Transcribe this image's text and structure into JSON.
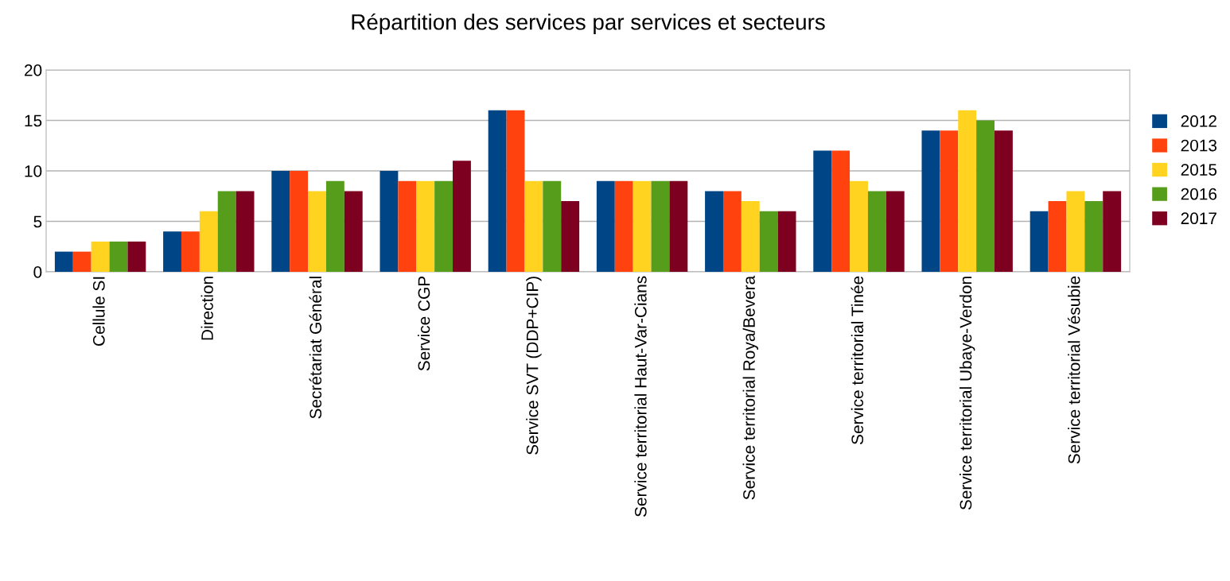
{
  "chart_data": {
    "type": "bar",
    "title": "Répartition des services par services et secteurs",
    "categories": [
      "Cellule SI",
      "Direction",
      "Secrétariat Général",
      "Service CGP",
      "Service SVT (DDP+CIP)",
      "Service territorial Haut-Var-Cians",
      "Service territorial Roya/Bevera",
      "Service territorial Tinée",
      "Service territorial Ubaye-Verdon",
      "Service territorial Vésubie"
    ],
    "series": [
      {
        "name": "2012",
        "color": "#004586",
        "values": [
          2,
          4,
          10,
          10,
          16,
          9,
          8,
          12,
          14,
          6
        ]
      },
      {
        "name": "2013",
        "color": "#ff420e",
        "values": [
          2,
          4,
          10,
          9,
          16,
          9,
          8,
          12,
          14,
          7
        ]
      },
      {
        "name": "2015",
        "color": "#ffd320",
        "values": [
          3,
          6,
          8,
          9,
          9,
          9,
          7,
          9,
          16,
          8
        ]
      },
      {
        "name": "2016",
        "color": "#579d1c",
        "values": [
          3,
          8,
          9,
          9,
          9,
          9,
          6,
          8,
          15,
          7
        ]
      },
      {
        "name": "2017",
        "color": "#7e0021",
        "values": [
          3,
          8,
          8,
          11,
          7,
          9,
          6,
          8,
          14,
          8
        ]
      }
    ],
    "ylim": [
      0,
      20
    ],
    "yticks": [
      0,
      5,
      10,
      15,
      20
    ],
    "grid": "y",
    "legend": "right"
  }
}
